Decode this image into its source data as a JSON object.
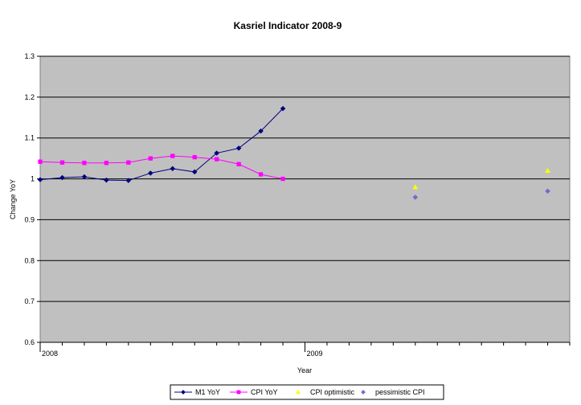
{
  "chart_data": {
    "type": "line",
    "title": "Kasriel Indicator 2008-9",
    "xlabel": "Year",
    "ylabel": "Change YoY",
    "x_tick_labels": [
      "2008",
      "2009"
    ],
    "x_tick_positions": [
      0,
      12
    ],
    "xlim": [
      0,
      24
    ],
    "ylim": [
      0.6,
      1.3
    ],
    "y_ticks": [
      0.6,
      0.7,
      0.8,
      0.9,
      1.0,
      1.1,
      1.2,
      1.3
    ],
    "y_tick_labels": [
      "0.6",
      "0.7",
      "0.8",
      "0.9",
      "1",
      "1.1",
      "1.2",
      "1.3"
    ],
    "grid": true,
    "plot_background": "#c0c0c0",
    "legend_placement": "bottom",
    "series": [
      {
        "name": "M1 YoY",
        "color": "#000080",
        "marker": "diamond",
        "line": true,
        "x": [
          0,
          1,
          2,
          3,
          4,
          5,
          6,
          7,
          8,
          9,
          10,
          11
        ],
        "y": [
          0.998,
          1.003,
          1.005,
          0.997,
          0.996,
          1.014,
          1.025,
          1.017,
          1.063,
          1.075,
          1.117,
          1.172
        ]
      },
      {
        "name": "CPI YoY",
        "color": "#ff00ff",
        "marker": "square",
        "line": true,
        "x": [
          0,
          1,
          2,
          3,
          4,
          5,
          6,
          7,
          8,
          9,
          10,
          11
        ],
        "y": [
          1.042,
          1.04,
          1.039,
          1.039,
          1.04,
          1.05,
          1.056,
          1.053,
          1.048,
          1.036,
          1.011,
          1.0
        ]
      },
      {
        "name": "CPI optimistic",
        "color": "#ffff00",
        "marker": "triangle",
        "line": false,
        "x": [
          17,
          23
        ],
        "y": [
          0.98,
          1.02
        ]
      },
      {
        "name": "pessimistic CPI",
        "color": "#8064c8",
        "marker": "diamond",
        "line": false,
        "x": [
          17,
          23
        ],
        "y": [
          0.955,
          0.97
        ]
      }
    ]
  }
}
